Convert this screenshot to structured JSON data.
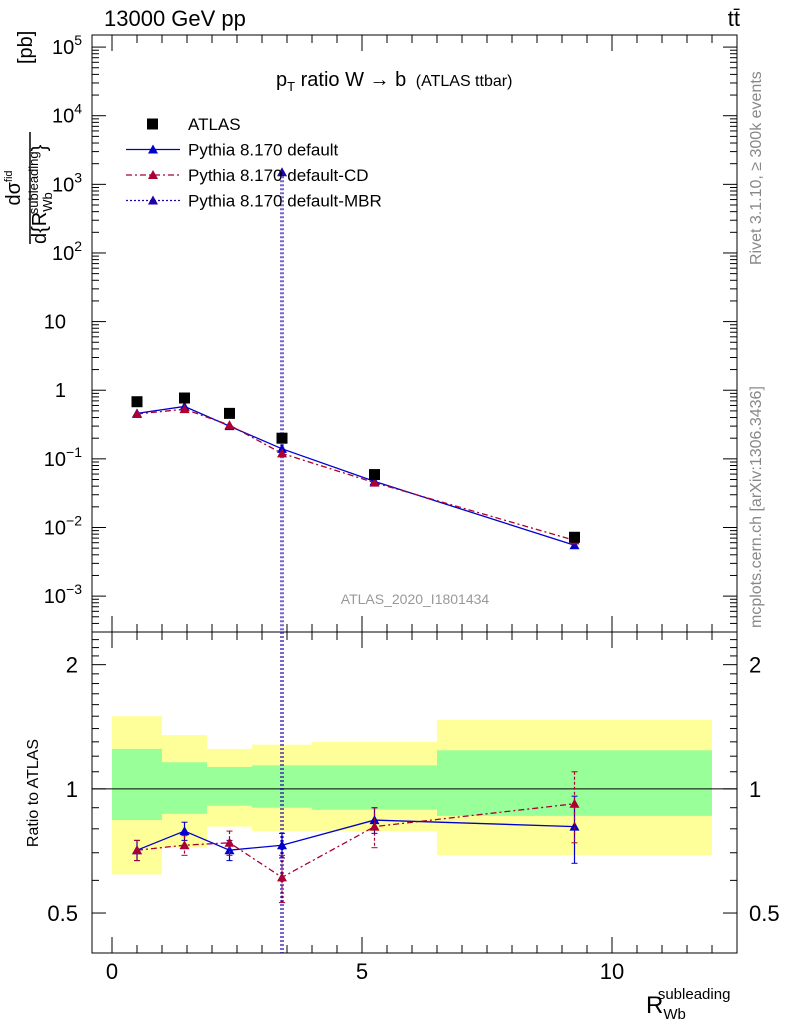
{
  "header": {
    "energy_label": "13000 GeV pp",
    "process_label": "tt̄"
  },
  "side_labels": {
    "rivet": "Rivet 3.1.10, ≥ 300k events",
    "mcplots": "mcplots.cern.ch [arXiv:1306.3436]"
  },
  "main_panel": {
    "title_prefix": "p",
    "title_sub": "T",
    "title_rest": " ratio W → b",
    "title_suffix": "(ATLAS ttbar)",
    "analysis_id": "ATLAS_2020_I1801434",
    "ylabel_num": "dσ",
    "ylabel_num_sup": "fid",
    "ylabel_den": "d{R",
    "ylabel_den_sub": "Wb",
    "ylabel_den_sup": "subleading",
    "ylabel_den_tail": "}",
    "ylabel_unit": "[pb]",
    "yticks": [
      {
        "value": 0.001,
        "base": "10",
        "exp": "−3"
      },
      {
        "value": 0.01,
        "base": "10",
        "exp": "−2"
      },
      {
        "value": 0.1,
        "base": "10",
        "exp": "−1"
      },
      {
        "value": 1,
        "base": "1",
        "exp": ""
      },
      {
        "value": 10,
        "base": "10",
        "exp": ""
      },
      {
        "value": 100,
        "base": "10",
        "exp": "2"
      },
      {
        "value": 1000,
        "base": "10",
        "exp": "3"
      },
      {
        "value": 10000,
        "base": "10",
        "exp": "4"
      },
      {
        "value": 100000,
        "base": "10",
        "exp": "5"
      }
    ]
  },
  "ratio_panel": {
    "ylabel": "Ratio to ATLAS",
    "yticks": [
      "0.5",
      "1",
      "2"
    ]
  },
  "xaxis": {
    "label": "R",
    "label_sub": "Wb",
    "label_sup": "subleading",
    "ticks": [
      "0",
      "5",
      "10"
    ]
  },
  "legend": [
    {
      "name": "ATLAS",
      "color": "#000000",
      "marker": "square",
      "line": "none"
    },
    {
      "name": "Pythia 8.170 default",
      "color": "#0000cc",
      "marker": "triangle",
      "line": "solid"
    },
    {
      "name": "Pythia 8.170 default-CD",
      "color": "#aa0033",
      "marker": "triangle",
      "line": "dashdot"
    },
    {
      "name": "Pythia 8.170 default-MBR",
      "color": "#2200aa",
      "marker": "triangle",
      "line": "dotted"
    }
  ],
  "chart_data": {
    "type": "scatter",
    "xlim": [
      -0.4,
      12.5
    ],
    "ylim": [
      0.0003,
      150000
    ],
    "log_y": true,
    "ratio_ylim": [
      0.4,
      2.4
    ],
    "ratio_log_y": true,
    "bins": [
      {
        "low": 0.0,
        "high": 1.0
      },
      {
        "low": 1.0,
        "high": 1.9
      },
      {
        "low": 1.9,
        "high": 2.8
      },
      {
        "low": 2.8,
        "high": 4.0
      },
      {
        "low": 4.0,
        "high": 6.5
      },
      {
        "low": 6.5,
        "high": 12.0
      }
    ],
    "x": [
      0.5,
      1.45,
      2.35,
      3.4,
      5.25,
      9.25
    ],
    "atlas": [
      0.68,
      0.77,
      0.46,
      0.2,
      0.059,
      0.0072
    ],
    "series": [
      {
        "name": "Pythia 8.170 default",
        "values": [
          0.46,
          0.58,
          0.3,
          0.14,
          0.047,
          0.0055
        ],
        "ratio": [
          0.71,
          0.79,
          0.71,
          0.73,
          0.84,
          0.81
        ],
        "ratio_err": [
          0.04,
          0.04,
          0.04,
          0.05,
          0.06,
          0.15
        ]
      },
      {
        "name": "Pythia 8.170 default-CD",
        "values": [
          0.45,
          0.53,
          0.31,
          0.12,
          0.045,
          0.0065
        ],
        "ratio": [
          0.71,
          0.73,
          0.74,
          0.61,
          0.81,
          0.92
        ],
        "ratio_err": [
          0.04,
          0.04,
          0.05,
          0.08,
          0.09,
          0.18
        ]
      },
      {
        "name": "Pythia 8.170 default-MBR",
        "values": [
          null,
          null,
          null,
          1500,
          null,
          null
        ],
        "ratio": [
          null,
          null,
          null,
          null,
          null,
          null
        ],
        "ratio_err": [
          null,
          null,
          null,
          null,
          null,
          null
        ],
        "vertical_line_x": 3.4
      }
    ],
    "band_yellow": [
      {
        "low": 0.62,
        "high": 1.5
      },
      {
        "low": 0.72,
        "high": 1.35
      },
      {
        "low": 0.81,
        "high": 1.25
      },
      {
        "low": 0.79,
        "high": 1.28
      },
      {
        "low": 0.79,
        "high": 1.3
      },
      {
        "low": 0.69,
        "high": 1.47
      }
    ],
    "band_green": [
      {
        "low": 0.84,
        "high": 1.25
      },
      {
        "low": 0.87,
        "high": 1.16
      },
      {
        "low": 0.91,
        "high": 1.13
      },
      {
        "low": 0.9,
        "high": 1.14
      },
      {
        "low": 0.89,
        "high": 1.14
      },
      {
        "low": 0.86,
        "high": 1.24
      }
    ]
  }
}
